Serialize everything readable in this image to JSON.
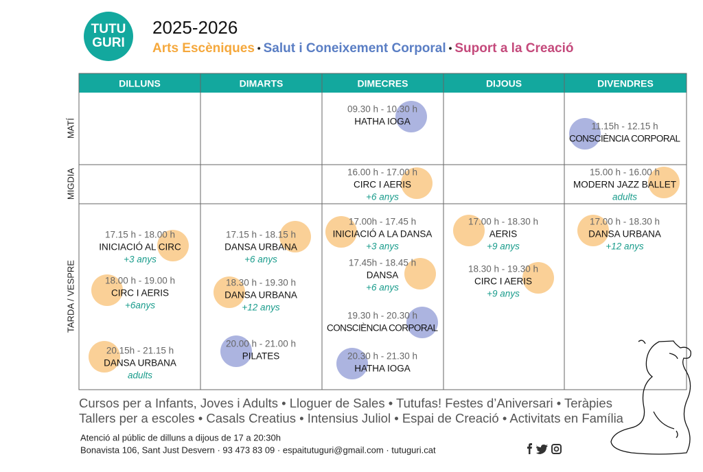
{
  "logo": [
    "TUTU",
    "GURI"
  ],
  "header": {
    "year": "2025-2026",
    "categories": [
      {
        "name": "Arts Escèniques",
        "color": "#f5a83c"
      },
      {
        "name": "Salut i Coneixement Corporal",
        "color": "#5a7ec4"
      },
      {
        "name": "Suport a la Creació",
        "color": "#c4497b"
      }
    ]
  },
  "days": [
    "DILLUNS",
    "DIMARTS",
    "DIMECRES",
    "DIJOUS",
    "DIVENDRES"
  ],
  "rows": [
    {
      "period": "MATÍ",
      "cells": [
        [],
        [],
        [
          {
            "time": "09.30 h - 10.30 h",
            "name": "HATHA IOGA",
            "color": "#a3acdd"
          }
        ],
        [],
        [
          {
            "time": "11.15h - 12.15 h",
            "name": "CONSCIÈNCIA CORPORAL",
            "color": "#a3acdd"
          }
        ]
      ]
    },
    {
      "period": "MIGDIA",
      "cells": [
        [],
        [],
        [
          {
            "time": "16.00 h - 17.00 h",
            "name": "CIRC I AERIS",
            "age": "+6 anys",
            "color": "#f9cb8c"
          }
        ],
        [],
        [
          {
            "time": "15.00 h - 16.00 h",
            "name": "MODERN JAZZ BALLET",
            "age": "adults",
            "color": "#f9cb8c"
          }
        ]
      ]
    },
    {
      "period": "TARDA / VESPRE",
      "cells": [
        [
          {
            "time": "17.15 h - 18.00 h",
            "name": "INICIACIÓ AL CIRC",
            "age": "+3 anys",
            "color": "#f9cb8c"
          },
          {
            "time": "18.00 h - 19.00 h",
            "name": "CIRC I AERIS",
            "age": "+6anys",
            "color": "#f9cb8c"
          },
          {
            "time": "20.15h - 21.15 h",
            "name": "DANSA URBANA",
            "age": "adults",
            "color": "#f9cb8c"
          }
        ],
        [
          {
            "time": "17.15 h - 18.15 h",
            "name": "DANSA URBANA",
            "age": "+6 anys",
            "color": "#f9cb8c"
          },
          {
            "time": "18.30 h - 19.30 h",
            "name": "DANSA URBANA",
            "age": "+12 anys",
            "color": "#f9cb8c"
          },
          {
            "time": "20.00 h - 21.00 h",
            "name": "PILATES",
            "color": "#a3acdd"
          }
        ],
        [
          {
            "time": "17.00h - 17.45 h",
            "name": "INICIACIÓ A LA DANSA",
            "age": "+3 anys",
            "color": "#f9cb8c"
          },
          {
            "time": "17.45h - 18.45 h",
            "name": "DANSA",
            "age": "+6 anys",
            "color": "#f9cb8c"
          },
          {
            "time": "19.30 h - 20.30 h",
            "name": "CONSCIÈNCIA CORPORAL",
            "color": "#a3acdd"
          },
          {
            "time": "20.30 h - 21.30 h",
            "name": "HATHA IOGA",
            "color": "#a3acdd"
          }
        ],
        [
          {
            "time": "17.00 h - 18.30 h",
            "name": "AERIS",
            "age": "+9 anys",
            "color": "#f9cb8c"
          },
          {
            "time": "18.30 h - 19.30 h",
            "name": "CIRC I AERIS",
            "age": "+9 anys",
            "color": "#f9cb8c"
          }
        ],
        [
          {
            "time": "17.00 h - 18.30 h",
            "name": "DANSA URBANA",
            "age": "+12 anys",
            "color": "#f9cb8c"
          }
        ]
      ]
    }
  ],
  "footer": {
    "services": [
      "Cursos per a Infants, Joves i Adults • Lloguer de Sales • Tutufas! Festes d’Aniversari • Teràpies",
      "Tallers per a escoles • Casals Creatius • Intensius Juliol • Espai de Creació • Activitats en Família"
    ],
    "contact": [
      "Atenció al públic de dilluns a dijous de 17 a 20:30h",
      "Bonavista 106, Sant Just Desvern · 93 473 83 09 · espaitutuguri@gmail.com · tutuguri.cat"
    ]
  }
}
